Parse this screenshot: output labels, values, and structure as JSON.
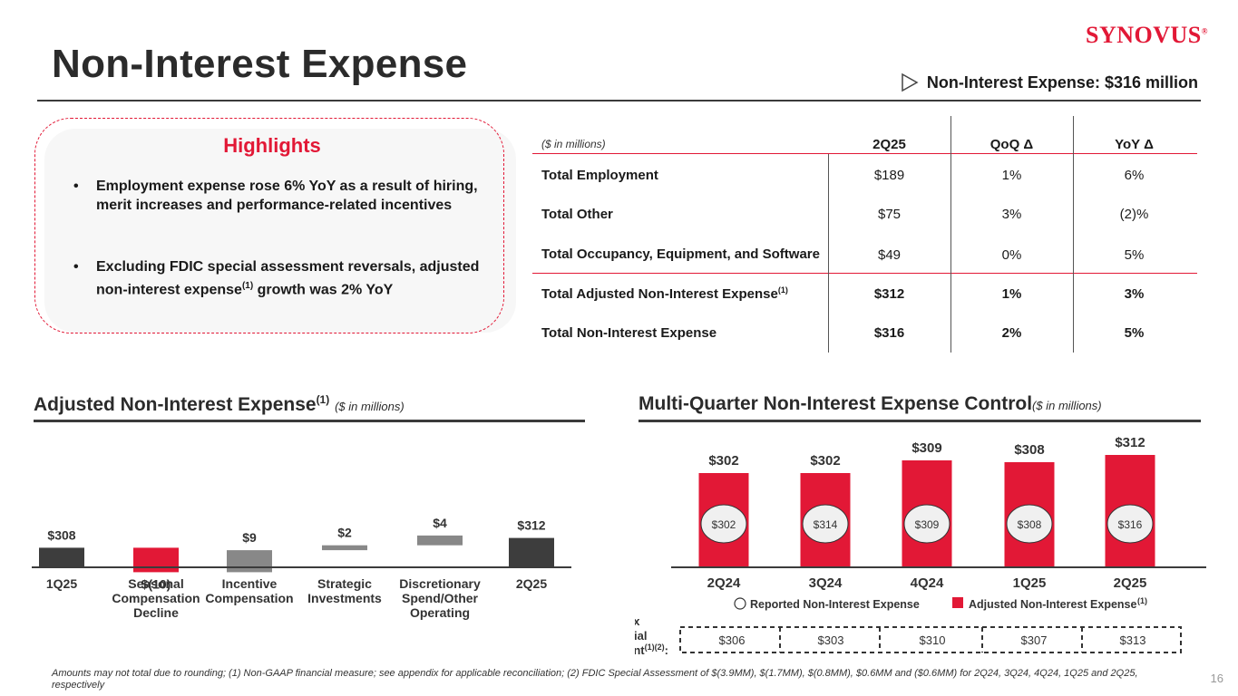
{
  "header": {
    "title": "Non-Interest Expense",
    "logo": "Synovus",
    "headline": "Non-Interest Expense: $316 million"
  },
  "highlights": {
    "title": "Highlights",
    "bullet1": "Employment expense rose 6% YoY as a result of hiring, merit increases and performance-related incentives",
    "bullet2_a": "Excluding FDIC special assessment reversals, adjusted non-interest expense",
    "bullet2_sup": "(1)",
    "bullet2_b": " growth was 2% YoY"
  },
  "table": {
    "unit_label": "($ in millions)",
    "columns": [
      "2Q25",
      "QoQ Δ",
      "YoY Δ"
    ],
    "rows": [
      {
        "label": "Total Employment",
        "sup": "",
        "q": "$189",
        "qoq": "1%",
        "yoy": "6%"
      },
      {
        "label": "Total Other",
        "sup": "",
        "q": "$75",
        "qoq": "3%",
        "yoy": "(2)%"
      },
      {
        "label": "Total Occupancy, Equipment, and Software",
        "sup": "",
        "q": "$49",
        "qoq": "0%",
        "yoy": "5%"
      },
      {
        "label": "Total Adjusted Non-Interest Expense",
        "sup": "(1)",
        "q": "$312",
        "qoq": "1%",
        "yoy": "3%"
      },
      {
        "label": "Total Non-Interest Expense",
        "sup": "",
        "q": "$316",
        "qoq": "2%",
        "yoy": "5%"
      }
    ]
  },
  "left_section": {
    "title": "Adjusted Non-Interest Expense",
    "sup": "(1)",
    "unit": "($ in millions)"
  },
  "right_section": {
    "title": "Multi-Quarter Non-Interest Expense Control",
    "unit": "($ in millions)"
  },
  "chart_data": [
    {
      "type": "bar",
      "subtype": "waterfall",
      "title": "Adjusted Non-Interest Expense (1)",
      "categories": [
        "1Q25",
        "Seasonal Compensation Decline",
        "Incentive Compensation",
        "Strategic Investments",
        "Discretionary Spend/Other Operating",
        "2Q25"
      ],
      "values": [
        308,
        -10,
        9,
        2,
        4,
        312
      ],
      "labels": [
        "$308",
        "$(10)",
        "$9",
        "$2",
        "$4",
        "$312"
      ],
      "kinds": [
        "total",
        "delta",
        "delta",
        "delta",
        "delta",
        "total"
      ],
      "colors": {
        "total": "#3d3d3d",
        "negative": "#e21836",
        "positive": "#888888"
      }
    },
    {
      "type": "bar",
      "title": "Multi-Quarter Non-Interest Expense Control",
      "categories": [
        "2Q24",
        "3Q24",
        "4Q24",
        "1Q25",
        "2Q25"
      ],
      "series": [
        {
          "name": "Adjusted Non-Interest Expense",
          "sup": "(1)",
          "values": [
            302,
            302,
            309,
            308,
            312
          ],
          "labels": [
            "$302",
            "$302",
            "$309",
            "$308",
            "$312"
          ],
          "color": "#e21836"
        },
        {
          "name": "Reported Non-Interest Expense",
          "values": [
            302,
            314,
            309,
            308,
            316
          ],
          "labels": [
            "$302",
            "$314",
            "$309",
            "$308",
            "$316"
          ]
        }
      ],
      "adj_ex_fdic": {
        "label_lines": [
          "Adj. NIE, ex",
          "FDIC Special",
          "Assessment"
        ],
        "label_sup": "(1)(2)",
        "label_suffix": ":",
        "values": [
          "$306",
          "$303",
          "$310",
          "$307",
          "$313"
        ]
      }
    }
  ],
  "footnote": "Amounts may not total due to rounding; (1) Non-GAAP financial measure; see appendix for applicable reconciliation; (2) FDIC Special Assessment of $(3.9MM), $(1.7MM), $(0.8MM), $0.6MM and ($0.6MM) for 2Q24, 3Q24, 4Q24, 1Q25 and 2Q25, respectively",
  "page_number": "16"
}
